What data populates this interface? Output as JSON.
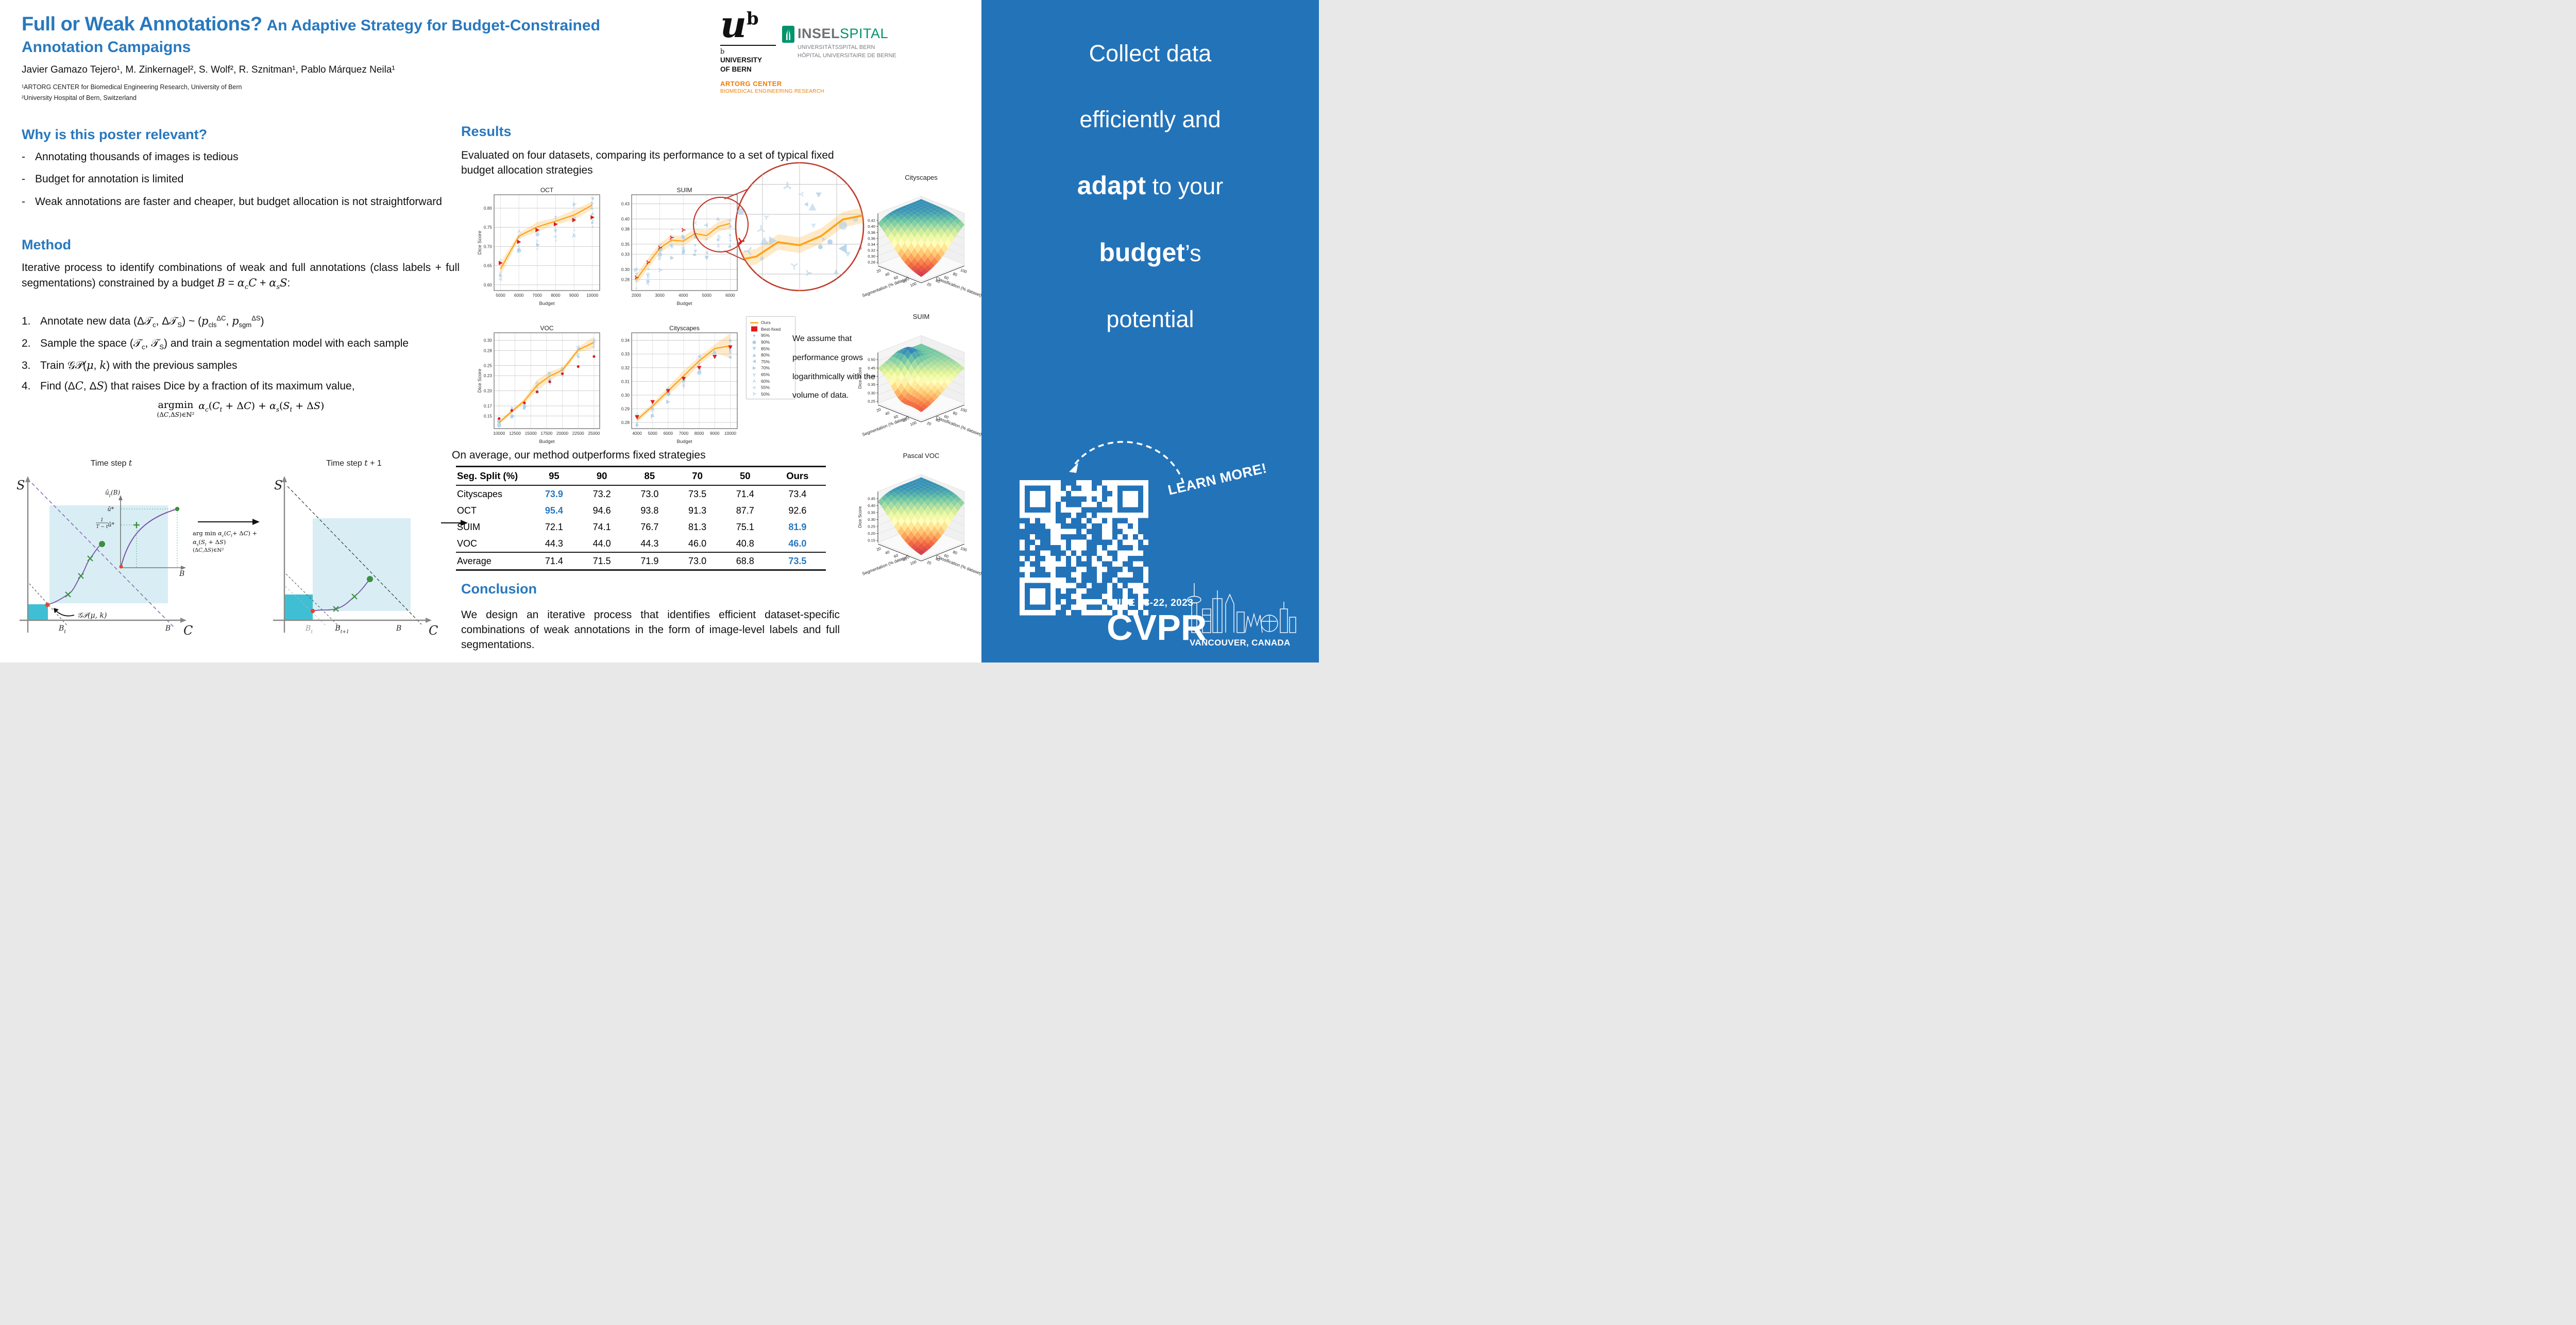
{
  "colors": {
    "accent_blue": "#2878BE",
    "sidebar_blue": "#2373B9",
    "ours_orange": "#FFA116",
    "band_orange": "#FDB94D",
    "best_red": "#E01A1A",
    "scatter_blue": "#A9CCE7",
    "artorg_orange": "#F07C00",
    "insel_green": "#00936B",
    "diagram_fill": "#D8EEF4",
    "diagram_teal": "#3FBFD4",
    "diagram_purple": "#7B52A8",
    "diagram_green": "#3E8E41",
    "magnifier_red": "#C03A2B"
  },
  "header": {
    "title_main": "Full or Weak Annotations?",
    "title_sub": "An Adaptive Strategy for Budget-Constrained",
    "title_line2": "Annotation Campaigns",
    "authors": "Javier Gamazo Tejero¹, M. Zinkernagel², S. Wolf², R. Sznitman¹, Pablo Márquez Neila¹",
    "affiliation1": "¹ARTORG CENTER for Biomedical Engineering Research, University of Bern",
    "affiliation2": "²University Hospital of Bern, Switzerland"
  },
  "logos": {
    "unibe": {
      "glyph_u": "u",
      "glyph_b": "b",
      "small_b": "b",
      "name1": "UNIVERSITY",
      "name2": "OF BERN",
      "artorg_line1": "ARTORG CENTER",
      "artorg_line2": "BIOMEDICAL ENGINEERING RESEARCH"
    },
    "insel": {
      "word_bold": "INSEL",
      "word_green": "SPITAL",
      "sub1": "UNIVERSITÄTSSPITAL BERN",
      "sub2": "HÔPITAL UNIVERSITAIRE DE BERNE"
    }
  },
  "why": {
    "heading": "Why is this poster relevant?",
    "bullets": [
      "Annotating thousands of images is tedious",
      "Budget for annotation is limited",
      "Weak annotations are faster and cheaper, but budget allocation is not straightforward"
    ]
  },
  "method": {
    "heading": "Method",
    "intro_html": "Iterative process to identify combinations of weak and full annotations (class labels + full segmentations) constrained by a budget <i>B</i> = <i>α<sub>c</sub>C</i> + <i>α<sub>s</sub>S</i>:",
    "steps_html": [
      "Annotate new data (Δ𝒯<sub>c</sub>, Δ𝒯<sub>S</sub>) ~ (<i>p</i><sub>cls</sub><sup>ΔC</sup>, <i>p</i><sub>sgm</sub><sup>ΔS</sup>)",
      "Sample the space (𝒯<sub>c</sub>, 𝒯<sub>S</sub>) and train a segmentation model with each sample",
      "Train 𝒢𝒫(<i>μ</i>, <i>k</i>) with the previous samples",
      "Find (Δ<i>C</i>, Δ<i>S</i>) that raises Dice by a fraction of its maximum value,"
    ],
    "argmin_op": "argmin",
    "argmin_sub_html": "(Δ<i>C</i>,Δ<i>S</i>)∈ℕ²",
    "argmin_expr_html": "<i>α<sub>c</sub></i>(<i>C<sub>t</sub></i> + Δ<i>C</i>) + <i>α<sub>s</sub></i>(<i>S<sub>t</sub></i> + Δ<i>S</i>)"
  },
  "diagrams": {
    "left": {
      "title_html": "Time step <i>t</i>",
      "ylabel": "S",
      "xlabel": "C",
      "inset_ylabel_html": "û<sub>t</sub>(B)",
      "inset_xlabel": "B",
      "tick_u": "û*",
      "frac_num": "1",
      "frac_den": "T − t",
      "frac_mul": "û*",
      "xtick1_html": "B<sub>t</sub>",
      "xtick2": "B",
      "gp_html": "𝒢𝒫(μ, k)"
    },
    "mid_formula_line1_html": "arg min <i>α<sub>c</sub></i>(<i>C<sub>t</sub></i>+ Δ<i>C</i>) + <i>α<sub>s</sub></i>(<i>S<sub>t</sub></i> + Δ<i>S</i>)",
    "mid_formula_line2_html": "(Δ<i>C</i>,Δ<i>S</i>)∈ℕ²",
    "right": {
      "title_html": "Time step <i>t</i> + 1",
      "ylabel": "S",
      "xlabel": "C",
      "xtick0_html": "B<sub>t</sub>",
      "xtick1_html": "B<sub>t+1</sub>",
      "xtick2": "B"
    }
  },
  "results": {
    "heading": "Results",
    "intro": "Evaluated on four datasets, comparing its performance to a set of typical fixed budget allocation strategies",
    "assume_text": "We assume that performance grows logarithmically with the volume of data.",
    "legend": [
      {
        "label": "Ours",
        "marker": "line"
      },
      {
        "label": "Best-fixed",
        "marker": "sq"
      },
      {
        "label": "95%",
        "marker": "c-s"
      },
      {
        "label": "90%",
        "marker": "c-l"
      },
      {
        "label": "85%",
        "marker": "v"
      },
      {
        "label": "80%",
        "marker": "^"
      },
      {
        "label": "75%",
        "marker": "<"
      },
      {
        "label": "70%",
        "marker": ">"
      },
      {
        "label": "65%",
        "marker": "yv"
      },
      {
        "label": "60%",
        "marker": "y^"
      },
      {
        "label": "55%",
        "marker": "y<"
      },
      {
        "label": "50%",
        "marker": "y>"
      }
    ],
    "line_plots": [
      {
        "title": "OCT",
        "xlabel": "Budget",
        "ylabel": "Dice Score",
        "xticks": [
          5000,
          6000,
          7000,
          8000,
          9000,
          10000
        ],
        "yticks": [
          0.6,
          0.65,
          0.7,
          0.75,
          0.8
        ],
        "xlim": [
          4650,
          10400
        ],
        "ylim": [
          0.585,
          0.835
        ],
        "ours_x": [
          5000,
          6000,
          7000,
          8000,
          9000,
          10000
        ],
        "ours_y": [
          0.641,
          0.727,
          0.751,
          0.766,
          0.782,
          0.808
        ],
        "band": [
          0.017,
          0.007,
          0.013,
          0.009,
          0.013,
          0.01
        ],
        "best_y": [
          0.657,
          0.712,
          0.743,
          0.758,
          0.769,
          0.776
        ],
        "best_marker": ">",
        "scatter_spread": 0.05
      },
      {
        "title": "SUIM",
        "xlabel": "Budget",
        "ylabel": "",
        "xticks": [
          2000,
          3000,
          4000,
          5000,
          6000
        ],
        "yticks": [
          0.28,
          0.3,
          0.33,
          0.35,
          0.38,
          0.4,
          0.43
        ],
        "xlim": [
          1800,
          6300
        ],
        "ylim": [
          0.258,
          0.448
        ],
        "ours_x": [
          2000,
          2500,
          3000,
          3500,
          4000,
          4500,
          5000,
          5500,
          6000
        ],
        "ours_y": [
          0.28,
          0.312,
          0.342,
          0.358,
          0.356,
          0.371,
          0.367,
          0.385,
          0.391
        ],
        "band": 0.01,
        "best_x": [
          2000,
          2500,
          3000,
          3500,
          4000
        ],
        "best_y": [
          0.284,
          0.314,
          0.343,
          0.363,
          0.378
        ],
        "best_marker": "y>",
        "scatter_spread": 0.038
      },
      {
        "title": "VOC",
        "xlabel": "Budget",
        "ylabel": "Dice Score",
        "xticks": [
          10000,
          12500,
          15000,
          17500,
          20000,
          22500,
          25000
        ],
        "yticks": [
          0.15,
          0.17,
          0.2,
          0.23,
          0.25,
          0.28,
          0.3
        ],
        "xlim": [
          9200,
          25900
        ],
        "ylim": [
          0.125,
          0.315
        ],
        "ours_x": [
          10000,
          12000,
          14000,
          16000,
          18000,
          20000,
          22500,
          25000
        ],
        "ours_y": [
          0.137,
          0.159,
          0.18,
          0.211,
          0.229,
          0.241,
          0.281,
          0.296
        ],
        "band": [
          0.004,
          0.004,
          0.005,
          0.011,
          0.009,
          0.006,
          0.005,
          0.012
        ],
        "best_y": [
          0.145,
          0.161,
          0.176,
          0.198,
          0.218,
          0.234,
          0.248,
          0.268
        ],
        "best_marker": "c",
        "scatter_spread": 0.013
      },
      {
        "title": "Cityscapes",
        "xlabel": "Budget",
        "ylabel": "",
        "xticks": [
          4000,
          5000,
          6000,
          7000,
          8000,
          9000,
          10000
        ],
        "yticks": [
          0.28,
          0.29,
          0.3,
          0.31,
          0.32,
          0.33,
          0.34
        ],
        "xlim": [
          3650,
          10450
        ],
        "ylim": [
          0.2755,
          0.3455
        ],
        "ours_x": [
          4000,
          5000,
          6000,
          7000,
          8000,
          9000,
          10000
        ],
        "ours_y": [
          0.282,
          0.292,
          0.303,
          0.314,
          0.325,
          0.334,
          0.336
        ],
        "band": [
          0.002,
          0.002,
          0.003,
          0.004,
          0.003,
          0.003,
          0.009
        ],
        "best_y": [
          0.284,
          0.295,
          0.303,
          0.312,
          0.32,
          0.328,
          0.335
        ],
        "best_marker": "v",
        "scatter_spread": 0.007
      }
    ],
    "surface_plots": [
      {
        "title": "Cityscapes",
        "zlabel": "Dice Score",
        "xlabel": "Segmentation (% dataset)",
        "ylabel": "Classification (% dataset)",
        "zticks": [
          0.28,
          0.3,
          0.32,
          0.34,
          0.36,
          0.38,
          0.4,
          0.42
        ],
        "xyticks": [
          20,
          40,
          60,
          80,
          100
        ],
        "shape": "cliff"
      },
      {
        "title": "SUIM",
        "zlabel": "Dice Score",
        "xlabel": "Segmentation (% dataset)",
        "ylabel": "Classification (% dataset)",
        "zticks": [
          0.25,
          0.3,
          0.35,
          0.4,
          0.45,
          0.5
        ],
        "xyticks": [
          20,
          40,
          60,
          80,
          100
        ],
        "shape": "peak"
      },
      {
        "title": "Pascal VOC",
        "zlabel": "Dice Score",
        "xlabel": "Segmentation (% dataset)",
        "ylabel": "Classification (% dataset)",
        "zticks": [
          0.15,
          0.2,
          0.25,
          0.3,
          0.35,
          0.4,
          0.45
        ],
        "xyticks": [
          20,
          40,
          60,
          80,
          100
        ],
        "shape": "cliff"
      }
    ],
    "table": {
      "caption": "On average, our method outperforms fixed strategies",
      "headers": [
        "Seg. Split (%)",
        "95",
        "90",
        "85",
        "70",
        "50",
        "Ours"
      ],
      "rows": [
        {
          "name": "Cityscapes",
          "values": [
            "73.9",
            "73.2",
            "73.0",
            "73.5",
            "71.4",
            "73.4"
          ],
          "highlight": 0
        },
        {
          "name": "OCT",
          "values": [
            "95.4",
            "94.6",
            "93.8",
            "91.3",
            "87.7",
            "92.6"
          ],
          "highlight": 0
        },
        {
          "name": "SUIM",
          "values": [
            "72.1",
            "74.1",
            "76.7",
            "81.3",
            "75.1",
            "81.9"
          ],
          "highlight": 5
        },
        {
          "name": "VOC",
          "values": [
            "44.3",
            "44.0",
            "44.3",
            "46.0",
            "40.8",
            "46.0"
          ],
          "highlight": 5
        },
        {
          "name": "Average",
          "values": [
            "71.4",
            "71.5",
            "71.9",
            "73.0",
            "68.8",
            "73.5"
          ],
          "highlight": 5
        }
      ]
    }
  },
  "conclusion": {
    "heading": "Conclusion",
    "text": "We design an iterative process that identifies efficient dataset-specific combinations of weak annotations in the form of image-level labels and full segmentations."
  },
  "sidebar": {
    "tagline": [
      [
        {
          "t": "Collect data",
          "b": false
        }
      ],
      [
        {
          "t": "efficiently and",
          "b": false
        }
      ],
      [
        {
          "t": "adapt",
          "b": true
        },
        {
          "t": " to your",
          "b": false
        }
      ],
      [
        {
          "t": "budget",
          "b": true
        },
        {
          "t": "’s",
          "b": false
        }
      ],
      [
        {
          "t": "potential",
          "b": false
        }
      ]
    ],
    "learn_more": "LEARN MORE!",
    "date": "JUNE 18-22, 2023",
    "conference": "CVPR",
    "location": "VANCOUVER, CANADA"
  }
}
